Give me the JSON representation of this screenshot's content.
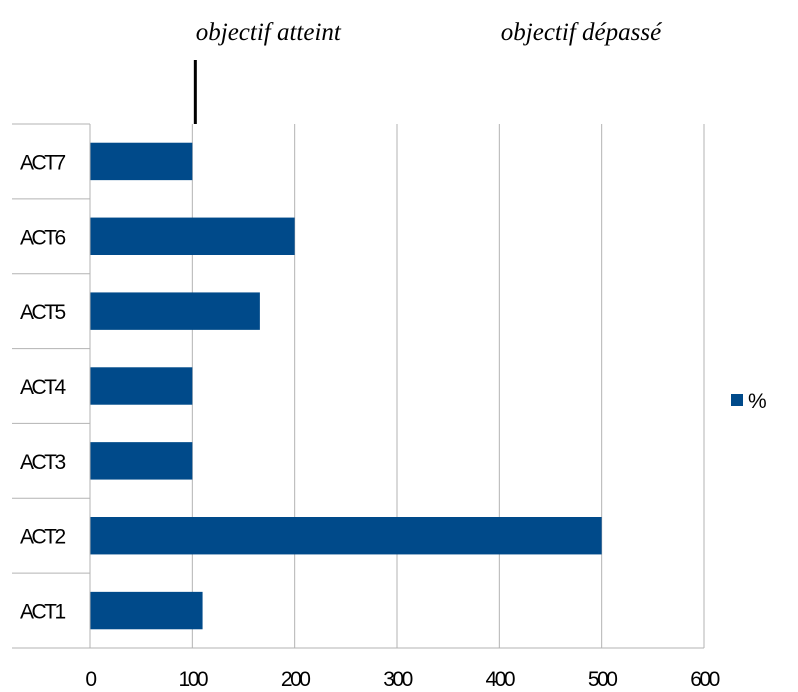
{
  "chart_data": {
    "type": "bar",
    "orientation": "horizontal",
    "categories": [
      "ACT1",
      "ACT2",
      "ACT3",
      "ACT4",
      "ACT5",
      "ACT6",
      "ACT7"
    ],
    "series": [
      {
        "name": "%",
        "values": [
          110,
          500,
          100,
          100,
          166,
          200,
          100
        ]
      }
    ],
    "xlim": [
      0,
      600
    ],
    "xticks": [
      "0",
      "100",
      "200",
      "300",
      "400",
      "500",
      "600"
    ],
    "grid": "vertical",
    "legend": "right",
    "annotations": [
      {
        "text": "objectif atteint",
        "at_value": 100
      },
      {
        "text": "objectif dépassé"
      }
    ],
    "colors": {
      "bar": "#004a8a",
      "grid": "#b3b3b3"
    }
  }
}
